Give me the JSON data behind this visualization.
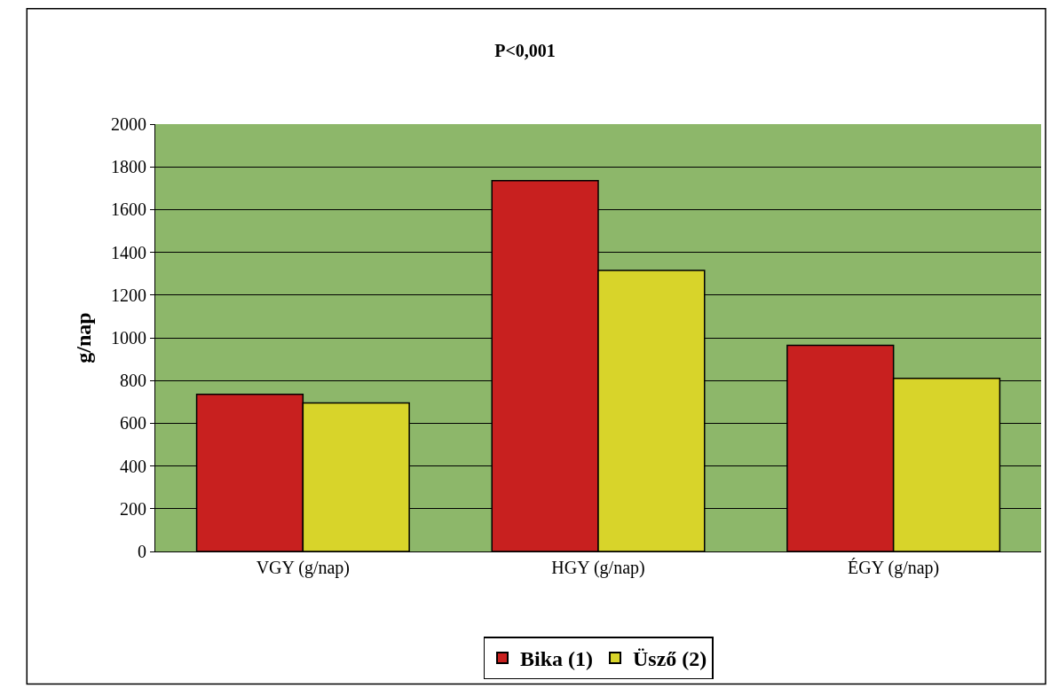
{
  "chart_data": {
    "type": "bar",
    "title": "P<0,001",
    "ylabel": "g/nap",
    "categories": [
      "VGY (g/nap)",
      "HGY (g/nap)",
      "ÉGY (g/nap)"
    ],
    "series": [
      {
        "name": "Bika (1)",
        "color": "#c8201f",
        "values": [
          735,
          1735,
          965
        ]
      },
      {
        "name": "Üsző (2)",
        "color": "#d8d42a",
        "values": [
          695,
          1315,
          810
        ]
      }
    ],
    "ylim": [
      0,
      2000
    ],
    "yticks": [
      0,
      200,
      400,
      600,
      800,
      1000,
      1200,
      1400,
      1600,
      1800,
      2000
    ],
    "grid": "y",
    "legend": "bottom"
  }
}
